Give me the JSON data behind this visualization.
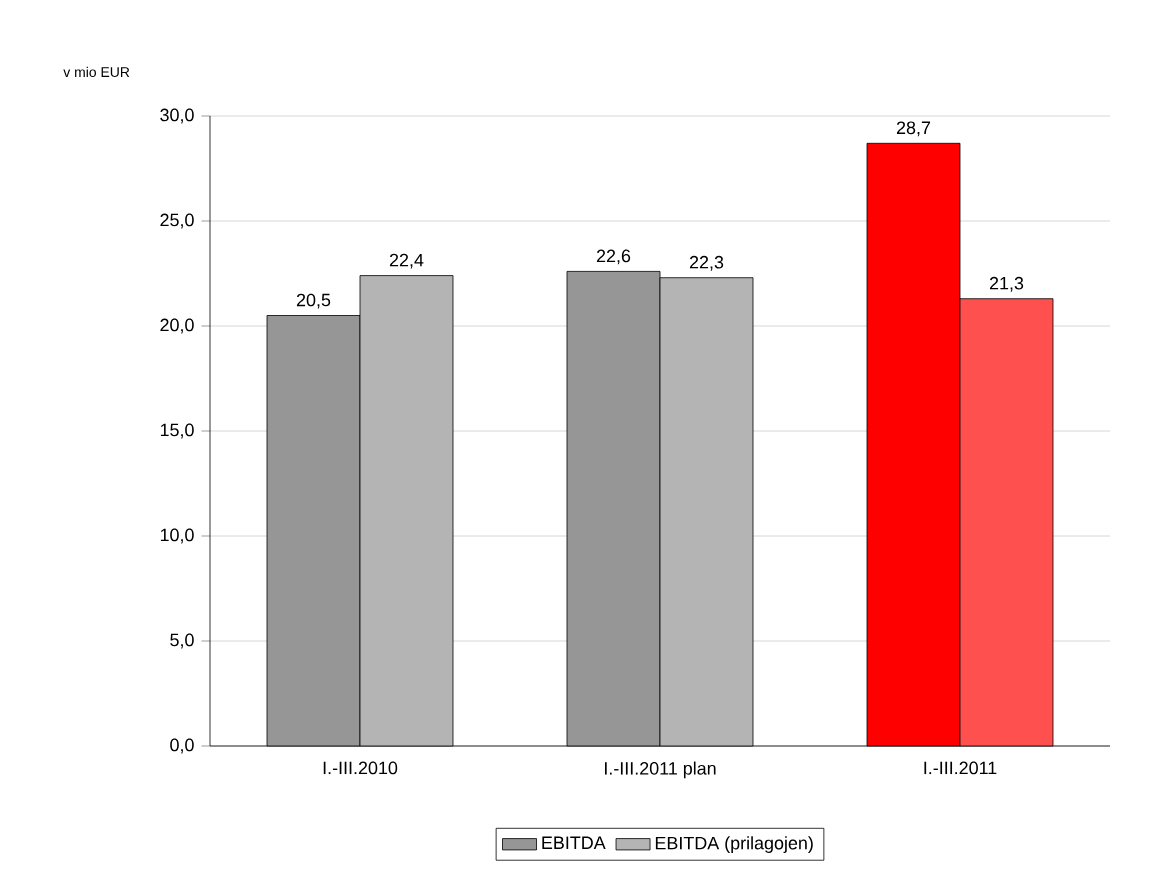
{
  "chart_data": {
    "type": "bar",
    "ylabel": "v mio EUR",
    "categories": [
      "I.-III.2010",
      "I.-III.2011 plan",
      "I.-III.2011"
    ],
    "series": [
      {
        "name": "EBITDA",
        "color": "#969696",
        "colors": [
          "#969696",
          "#969696",
          "#ff0000"
        ],
        "values": [
          20.5,
          22.6,
          28.7
        ],
        "value_labels": [
          "20,5",
          "22,6",
          "28,7"
        ]
      },
      {
        "name": "EBITDA (prilagojen)",
        "color": "#b4b4b4",
        "colors": [
          "#b4b4b4",
          "#b4b4b4",
          "#ff5050"
        ],
        "values": [
          22.4,
          22.3,
          21.3
        ],
        "value_labels": [
          "22,4",
          "22,3",
          "21,3"
        ]
      }
    ],
    "ylim": [
      0,
      30
    ],
    "yticks": [
      {
        "value": 0,
        "label": "0,0"
      },
      {
        "value": 5,
        "label": "5,0"
      },
      {
        "value": 10,
        "label": "10,0"
      },
      {
        "value": 15,
        "label": "15,0"
      },
      {
        "value": 20,
        "label": "20,0"
      },
      {
        "value": 25,
        "label": "25,0"
      },
      {
        "value": 30,
        "label": "30,0"
      }
    ],
    "grid": "y",
    "legend": "bottom"
  }
}
